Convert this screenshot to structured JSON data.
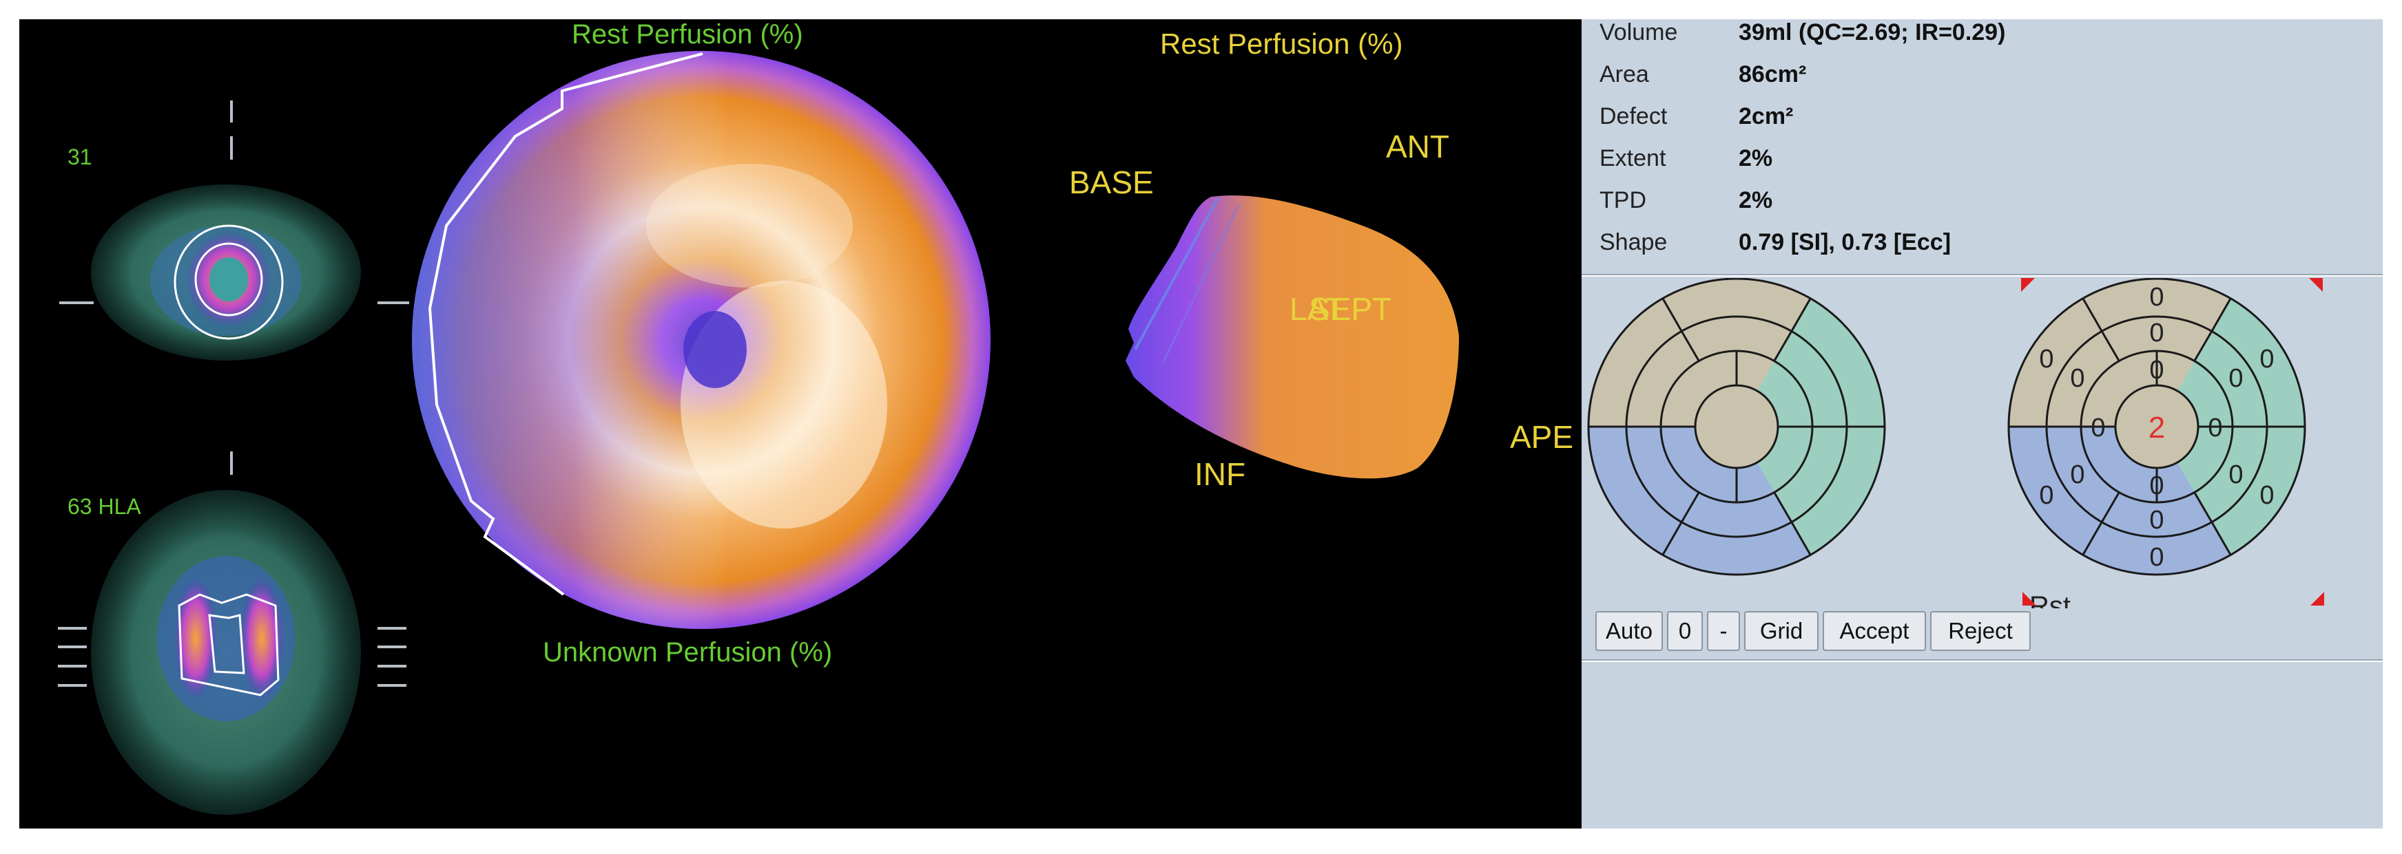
{
  "viewer": {
    "slice_sa_label": "31",
    "slice_hla_label": "63 HLA",
    "polar_top_title": "Rest Perfusion (%)",
    "polar_bottom_title": "Unknown Perfusion (%)",
    "view3d_title": "Rest Perfusion (%)",
    "orient": {
      "base": "BASE",
      "ant": "ANT",
      "sept": "SEPT",
      "inf": "INF",
      "apex": "APE",
      "lat": "LAT"
    }
  },
  "stats": [
    {
      "name": "Volume",
      "value": "39ml (QC=2.69; IR=0.29)"
    },
    {
      "name": "Area",
      "value": "86cm²"
    },
    {
      "name": "Defect",
      "value": "2cm²"
    },
    {
      "name": "Extent",
      "value": "2%"
    },
    {
      "name": "TPD",
      "value": "2%"
    },
    {
      "name": "Shape",
      "value": "0.79 [SI],  0.73 [Ecc]"
    }
  ],
  "score_map": {
    "label": "Rst",
    "apex": "2",
    "basal": [
      "0",
      "0",
      "0",
      "0",
      "0",
      "0"
    ],
    "mid": [
      "0",
      "0",
      "0",
      "0",
      "0",
      "0"
    ],
    "apical": [
      "0",
      "0",
      "0",
      "0"
    ]
  },
  "buttons": [
    {
      "id": "auto",
      "label": "Auto"
    },
    {
      "id": "zero",
      "label": "0"
    },
    {
      "id": "minus",
      "label": "-"
    },
    {
      "id": "grid",
      "label": "Grid"
    },
    {
      "id": "accept",
      "label": "Accept"
    },
    {
      "id": "reject",
      "label": "Reject"
    }
  ],
  "colors": {
    "territory_lad": "#c9c2ad",
    "territory_lcx": "#9ccfc0",
    "territory_rca": "#9db3dc",
    "panel_bg": "#c8d3e0",
    "score_highlight": "#e03030",
    "label_green": "#66cc33",
    "label_yellow": "#e8d23a"
  }
}
